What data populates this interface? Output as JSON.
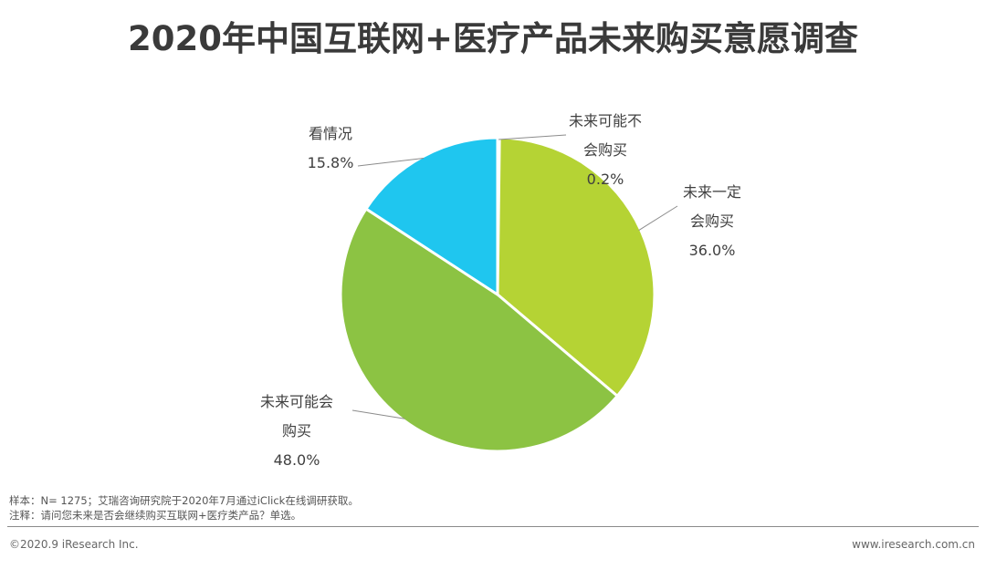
{
  "chart_data": {
    "type": "pie",
    "title": "2020年中国互联网+医疗产品未来购买意愿调查",
    "slices": [
      {
        "label": "未来可能不会购买",
        "label_lines": [
          "未来可能不",
          "会购买"
        ],
        "value_text": "0.2%",
        "value": 0.2,
        "color": "#cbd74a"
      },
      {
        "label": "未来一定会购买",
        "label_lines": [
          "未来一定",
          "会购买"
        ],
        "value_text": "36.0%",
        "value": 36.0,
        "color": "#b5d334"
      },
      {
        "label": "未来可能会购买",
        "label_lines": [
          "未来可能会",
          "购买"
        ],
        "value_text": "48.0%",
        "value": 48.0,
        "color": "#8cc343"
      },
      {
        "label": "看情况",
        "label_lines": [
          "看情况"
        ],
        "value_text": "15.8%",
        "value": 15.8,
        "color": "#1fc6ef"
      }
    ]
  },
  "notes": {
    "sample": "样本：N= 1275；艾瑞咨询研究院于2020年7月通过iClick在线调研获取。",
    "remark": "注释：请问您未来是否会继续购买互联网+医疗类产品？单选。"
  },
  "footer": {
    "copyright": "©2020.9 iResearch Inc.",
    "website": "www.iresearch.com.cn"
  }
}
